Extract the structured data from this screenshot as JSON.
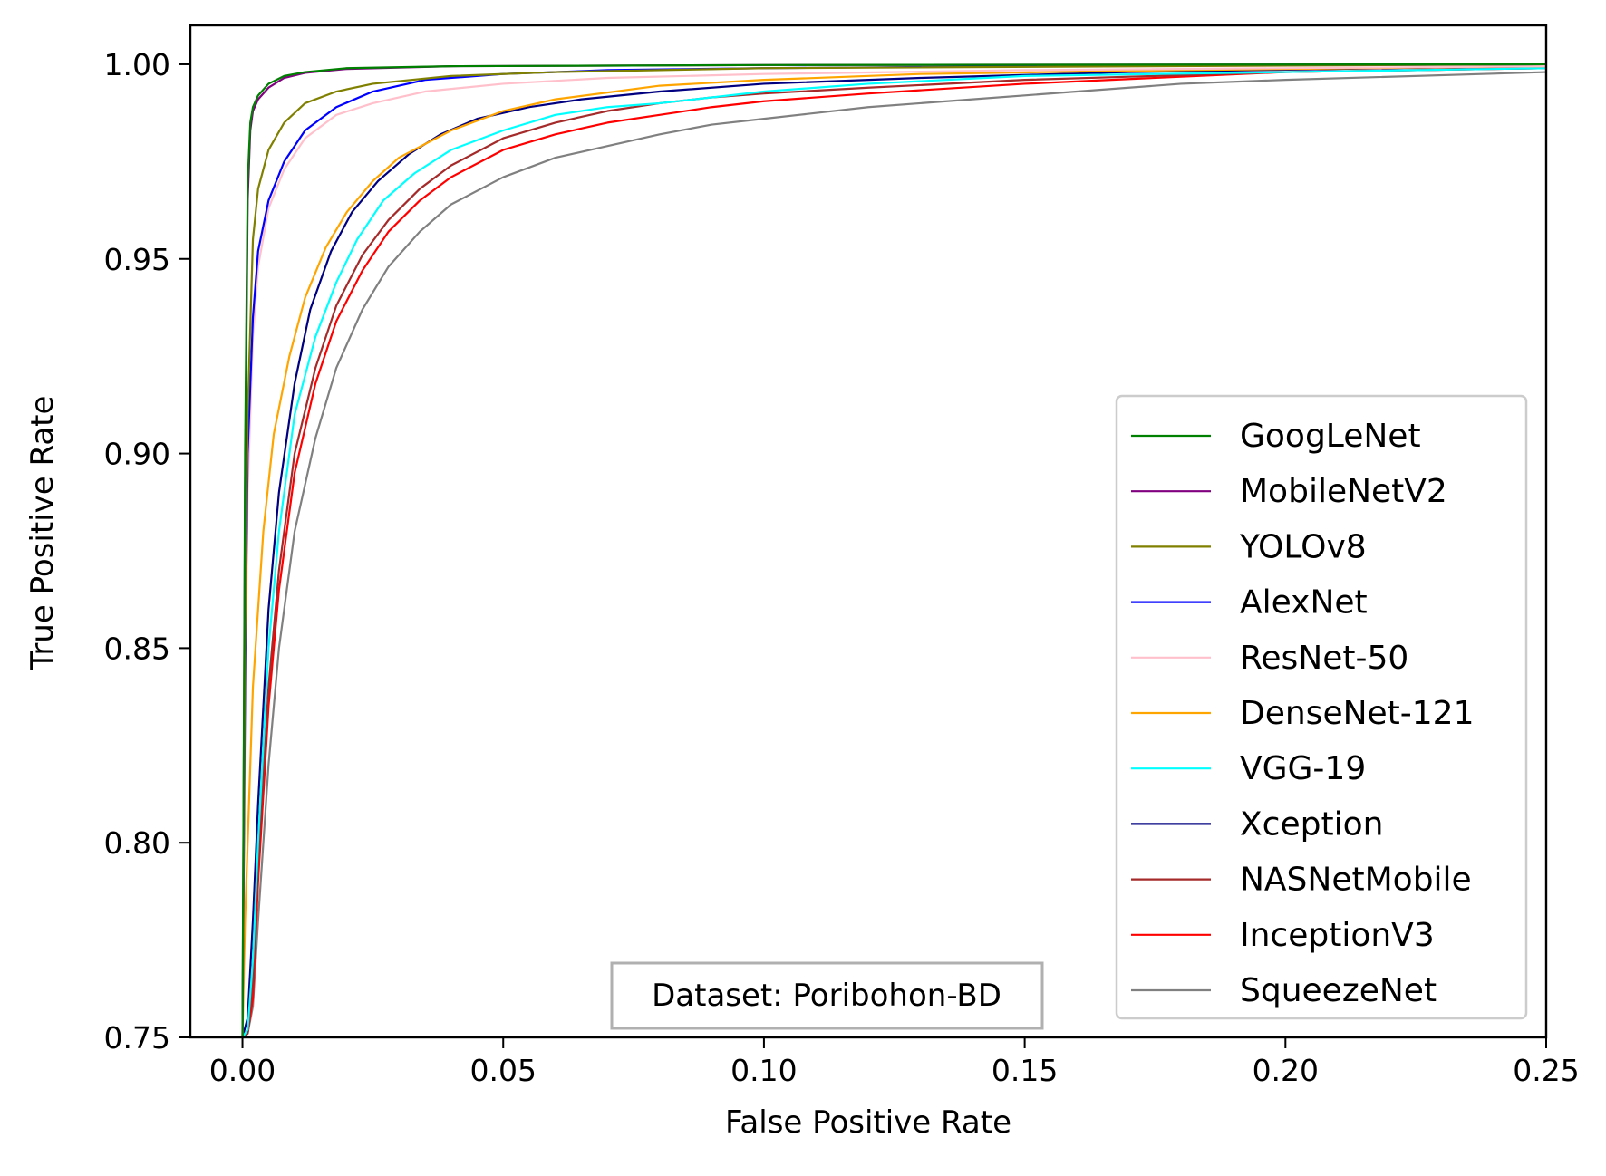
{
  "chart_data": {
    "type": "line",
    "title": "",
    "xlabel": "False Positive Rate",
    "ylabel": "True Positive Rate",
    "xlim": [
      -0.01,
      0.25
    ],
    "ylim": [
      0.75,
      1.01
    ],
    "xticks": [
      0.0,
      0.05,
      0.1,
      0.15,
      0.2,
      0.25
    ],
    "xtick_labels": [
      "0.00",
      "0.05",
      "0.10",
      "0.15",
      "0.20",
      "0.25"
    ],
    "yticks": [
      0.75,
      0.8,
      0.85,
      0.9,
      0.95,
      1.0
    ],
    "ytick_labels": [
      "0.75",
      "0.80",
      "0.85",
      "0.90",
      "0.95",
      "1.00"
    ],
    "grid": false,
    "legend_position": "lower-right",
    "annotation": "Dataset: Poribohon-BD",
    "series": [
      {
        "name": "GoogLeNet",
        "color": "#008000",
        "x": [
          0.0,
          0.0005,
          0.001,
          0.0015,
          0.002,
          0.003,
          0.005,
          0.008,
          0.012,
          0.02,
          0.04,
          0.1,
          0.25
        ],
        "y": [
          0.75,
          0.9,
          0.97,
          0.985,
          0.989,
          0.992,
          0.995,
          0.997,
          0.998,
          0.999,
          0.9995,
          0.9998,
          1.0
        ]
      },
      {
        "name": "MobileNetV2",
        "color": "#800080",
        "x": [
          0.0,
          0.0005,
          0.001,
          0.0015,
          0.002,
          0.003,
          0.005,
          0.008,
          0.012,
          0.02,
          0.04,
          0.1,
          0.25
        ],
        "y": [
          0.75,
          0.89,
          0.965,
          0.983,
          0.988,
          0.991,
          0.994,
          0.9965,
          0.9978,
          0.9988,
          0.9995,
          0.9998,
          1.0
        ]
      },
      {
        "name": "YOLOv8",
        "color": "#808000",
        "x": [
          0.0,
          0.0005,
          0.001,
          0.002,
          0.003,
          0.005,
          0.008,
          0.012,
          0.018,
          0.025,
          0.04,
          0.06,
          0.1,
          0.25
        ],
        "y": [
          0.75,
          0.85,
          0.91,
          0.955,
          0.968,
          0.978,
          0.985,
          0.99,
          0.993,
          0.995,
          0.997,
          0.998,
          0.999,
          1.0
        ]
      },
      {
        "name": "AlexNet",
        "color": "#0000ff",
        "x": [
          0.0,
          0.0005,
          0.001,
          0.002,
          0.003,
          0.005,
          0.008,
          0.012,
          0.018,
          0.025,
          0.035,
          0.05,
          0.07,
          0.1,
          0.15,
          0.25
        ],
        "y": [
          0.75,
          0.84,
          0.9,
          0.935,
          0.952,
          0.965,
          0.975,
          0.983,
          0.989,
          0.993,
          0.996,
          0.9975,
          0.9985,
          0.999,
          0.9995,
          1.0
        ]
      },
      {
        "name": "ResNet-50",
        "color": "#ffc0cb",
        "x": [
          0.0,
          0.0005,
          0.001,
          0.002,
          0.003,
          0.005,
          0.008,
          0.012,
          0.018,
          0.025,
          0.035,
          0.05,
          0.07,
          0.1,
          0.15,
          0.25
        ],
        "y": [
          0.75,
          0.83,
          0.89,
          0.93,
          0.948,
          0.963,
          0.973,
          0.981,
          0.987,
          0.99,
          0.993,
          0.995,
          0.9965,
          0.9975,
          0.9985,
          0.9995
        ]
      },
      {
        "name": "DenseNet-121",
        "color": "#ffa500",
        "x": [
          0.0,
          0.0005,
          0.001,
          0.002,
          0.004,
          0.006,
          0.009,
          0.012,
          0.016,
          0.02,
          0.025,
          0.03,
          0.04,
          0.05,
          0.06,
          0.08,
          0.1,
          0.13,
          0.18,
          0.25
        ],
        "y": [
          0.75,
          0.78,
          0.8,
          0.84,
          0.88,
          0.905,
          0.925,
          0.94,
          0.953,
          0.962,
          0.97,
          0.976,
          0.983,
          0.988,
          0.991,
          0.9945,
          0.996,
          0.9975,
          0.9985,
          0.9995
        ]
      },
      {
        "name": "VGG-19",
        "color": "#00ffff",
        "x": [
          0.0,
          0.001,
          0.002,
          0.003,
          0.005,
          0.007,
          0.01,
          0.014,
          0.018,
          0.022,
          0.027,
          0.033,
          0.04,
          0.05,
          0.06,
          0.07,
          0.08,
          0.09,
          0.1,
          0.12,
          0.15,
          0.2,
          0.25
        ],
        "y": [
          0.75,
          0.752,
          0.77,
          0.8,
          0.85,
          0.88,
          0.91,
          0.93,
          0.944,
          0.955,
          0.965,
          0.972,
          0.978,
          0.983,
          0.987,
          0.989,
          0.99,
          0.9915,
          0.993,
          0.995,
          0.997,
          0.998,
          0.999
        ]
      },
      {
        "name": "Xception",
        "color": "#000080",
        "x": [
          0.0,
          0.001,
          0.002,
          0.003,
          0.005,
          0.007,
          0.01,
          0.013,
          0.017,
          0.021,
          0.026,
          0.032,
          0.038,
          0.045,
          0.055,
          0.065,
          0.08,
          0.1,
          0.13,
          0.17,
          0.22,
          0.25
        ],
        "y": [
          0.75,
          0.755,
          0.78,
          0.81,
          0.86,
          0.89,
          0.918,
          0.937,
          0.952,
          0.962,
          0.97,
          0.977,
          0.982,
          0.986,
          0.989,
          0.991,
          0.993,
          0.995,
          0.9965,
          0.998,
          0.999,
          0.9995
        ]
      },
      {
        "name": "NASNetMobile",
        "color": "#a52a2a",
        "x": [
          0.0,
          0.001,
          0.002,
          0.003,
          0.005,
          0.007,
          0.01,
          0.014,
          0.018,
          0.023,
          0.028,
          0.034,
          0.04,
          0.05,
          0.06,
          0.07,
          0.08,
          0.09,
          0.1,
          0.12,
          0.15,
          0.2,
          0.25
        ],
        "y": [
          0.75,
          0.751,
          0.765,
          0.795,
          0.84,
          0.87,
          0.9,
          0.922,
          0.938,
          0.951,
          0.96,
          0.968,
          0.974,
          0.981,
          0.985,
          0.988,
          0.99,
          0.9915,
          0.9925,
          0.994,
          0.996,
          0.998,
          0.999
        ]
      },
      {
        "name": "InceptionV3",
        "color": "#ff0000",
        "x": [
          0.0,
          0.001,
          0.002,
          0.003,
          0.005,
          0.007,
          0.01,
          0.014,
          0.018,
          0.023,
          0.028,
          0.034,
          0.04,
          0.05,
          0.06,
          0.07,
          0.08,
          0.09,
          0.1,
          0.12,
          0.15,
          0.2,
          0.25
        ],
        "y": [
          0.75,
          0.751,
          0.76,
          0.79,
          0.835,
          0.865,
          0.895,
          0.918,
          0.934,
          0.947,
          0.957,
          0.965,
          0.971,
          0.978,
          0.982,
          0.985,
          0.987,
          0.989,
          0.9905,
          0.9925,
          0.995,
          0.998,
          0.999
        ]
      },
      {
        "name": "SqueezeNet",
        "color": "#808080",
        "x": [
          0.0,
          0.001,
          0.002,
          0.003,
          0.005,
          0.007,
          0.01,
          0.014,
          0.018,
          0.023,
          0.028,
          0.034,
          0.04,
          0.05,
          0.06,
          0.07,
          0.08,
          0.09,
          0.1,
          0.12,
          0.14,
          0.16,
          0.18,
          0.2,
          0.25
        ],
        "y": [
          0.75,
          0.751,
          0.758,
          0.78,
          0.82,
          0.85,
          0.88,
          0.904,
          0.922,
          0.937,
          0.948,
          0.957,
          0.964,
          0.971,
          0.976,
          0.979,
          0.982,
          0.9845,
          0.986,
          0.989,
          0.991,
          0.993,
          0.995,
          0.996,
          0.998
        ]
      }
    ]
  }
}
